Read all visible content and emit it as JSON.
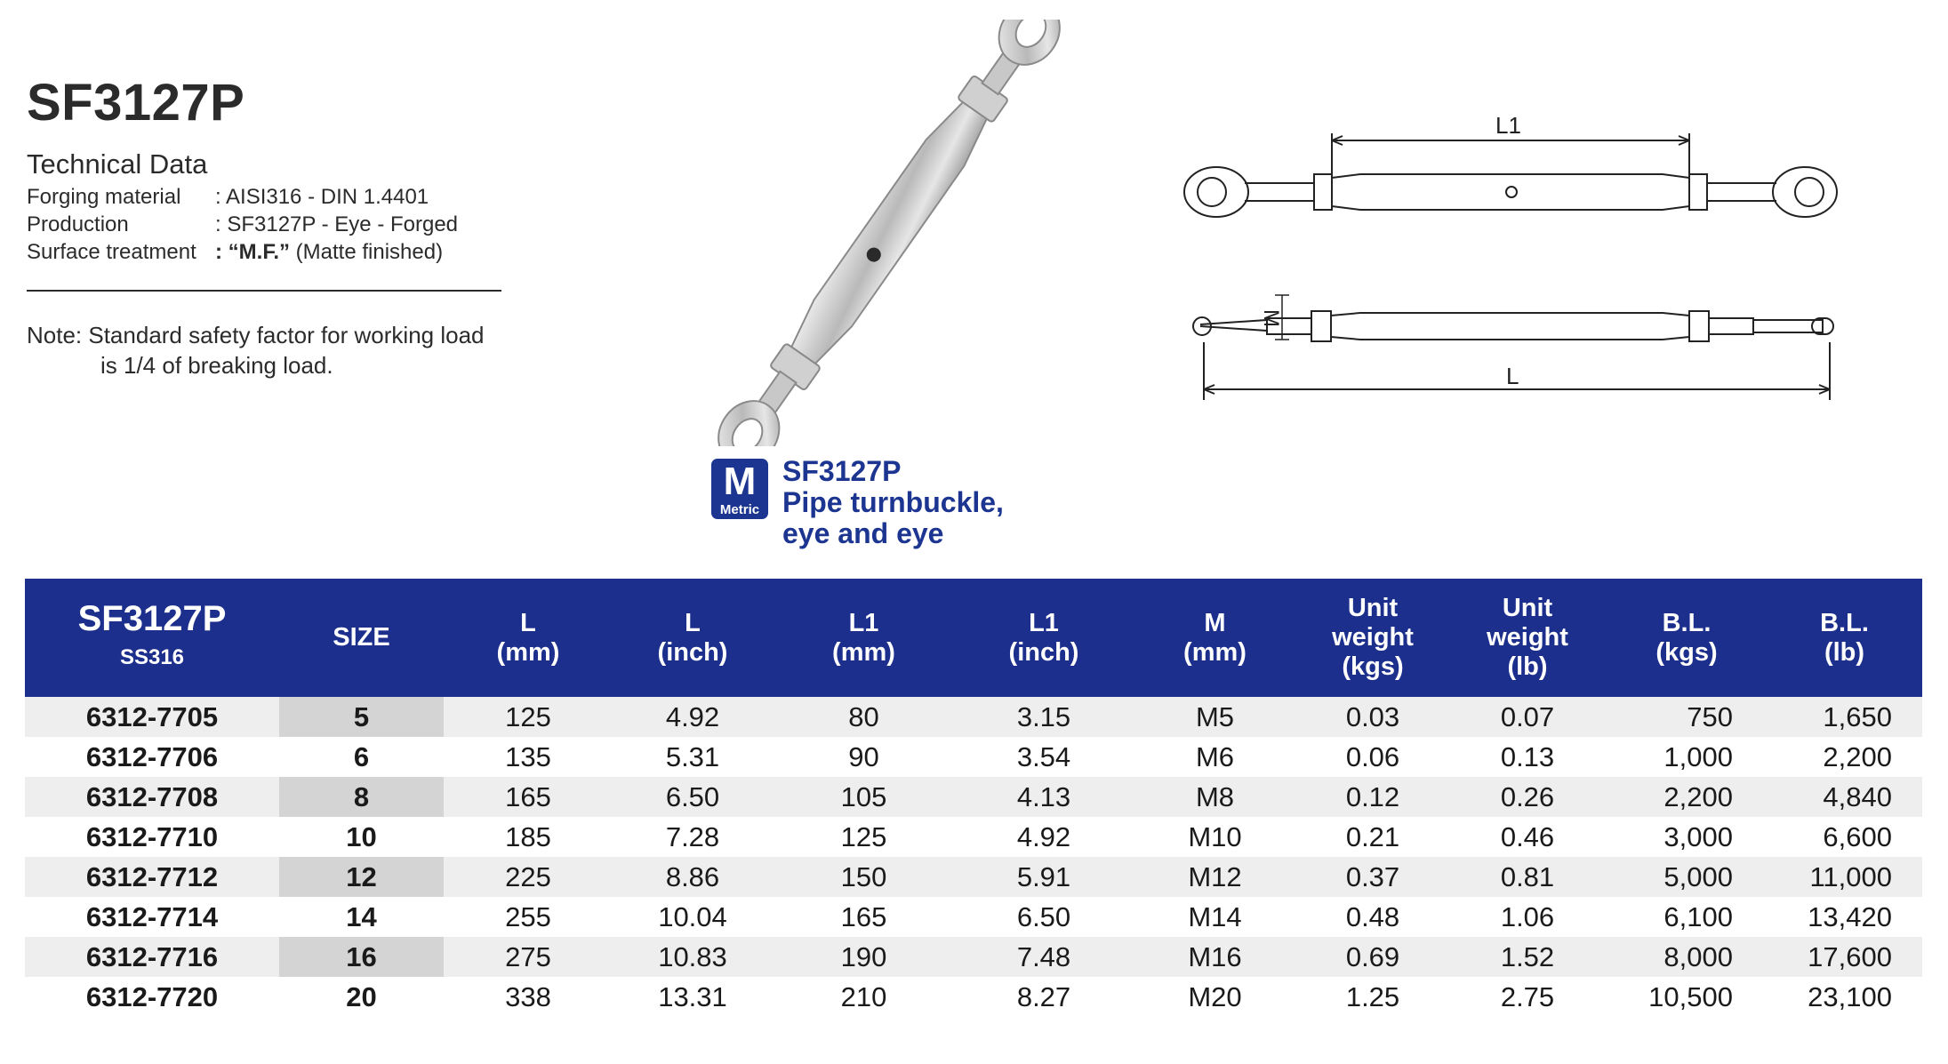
{
  "title": "SF3127P",
  "technical": {
    "heading": "Technical Data",
    "rows": [
      {
        "label": "Forging material",
        "value": ": AISI316 - DIN 1.4401"
      },
      {
        "label": "Production",
        "value": ": SF3127P - Eye - Forged"
      },
      {
        "label": "Surface treatment",
        "value_bold": ": “M.F.”",
        "value_rest": " (Matte finished)"
      }
    ]
  },
  "note": {
    "line1": "Note:  Standard safety factor for working load",
    "line2": "is 1/4 of breaking load."
  },
  "drawing": {
    "l1_label": "L1",
    "m_label": "M",
    "l_label": "L"
  },
  "badge": {
    "letter": "M",
    "label": "Metric"
  },
  "caption": {
    "line1": "SF3127P",
    "line2": "Pipe turnbuckle,",
    "line3": "eye and eye"
  },
  "table": {
    "header": {
      "part_code": "SF3127P",
      "part_material": "SS316",
      "columns": [
        "SIZE",
        "L\n(mm)",
        "L\n(inch)",
        "L1\n(mm)",
        "L1\n(inch)",
        "M\n(mm)",
        "Unit\nweight\n(kgs)",
        "Unit\nweight\n(lb)",
        "B.L.\n(kgs)",
        "B.L.\n(lb)"
      ]
    },
    "rows": [
      [
        "6312-7705",
        "5",
        "125",
        "4.92",
        "80",
        "3.15",
        "M5",
        "0.03",
        "0.07",
        "750",
        "1,650"
      ],
      [
        "6312-7706",
        "6",
        "135",
        "5.31",
        "90",
        "3.54",
        "M6",
        "0.06",
        "0.13",
        "1,000",
        "2,200"
      ],
      [
        "6312-7708",
        "8",
        "165",
        "6.50",
        "105",
        "4.13",
        "M8",
        "0.12",
        "0.26",
        "2,200",
        "4,840"
      ],
      [
        "6312-7710",
        "10",
        "185",
        "7.28",
        "125",
        "4.92",
        "M10",
        "0.21",
        "0.46",
        "3,000",
        "6,600"
      ],
      [
        "6312-7712",
        "12",
        "225",
        "8.86",
        "150",
        "5.91",
        "M12",
        "0.37",
        "0.81",
        "5,000",
        "11,000"
      ],
      [
        "6312-7714",
        "14",
        "255",
        "10.04",
        "165",
        "6.50",
        "M14",
        "0.48",
        "1.06",
        "6,100",
        "13,420"
      ],
      [
        "6312-7716",
        "16",
        "275",
        "10.83",
        "190",
        "7.48",
        "M16",
        "0.69",
        "1.52",
        "8,000",
        "17,600"
      ],
      [
        "6312-7720",
        "20",
        "338",
        "13.31",
        "210",
        "8.27",
        "M20",
        "1.25",
        "2.75",
        "10,500",
        "23,100"
      ]
    ]
  },
  "colors": {
    "header_blue": "#1c2f8c",
    "caption_blue": "#1c3591",
    "row_shade": "#eeeeee",
    "size_shade": "#d4d4d4"
  }
}
